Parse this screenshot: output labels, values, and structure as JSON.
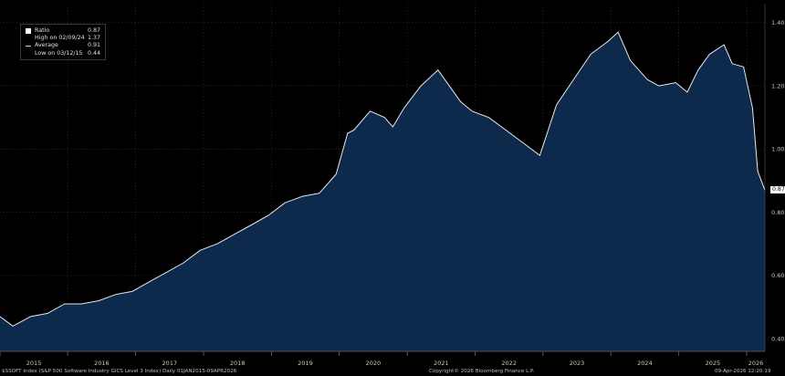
{
  "chart_data": {
    "type": "area",
    "title": "",
    "xlabel": "",
    "ylabel": "",
    "ylim": [
      0.36,
      1.46
    ],
    "y_ticks": [
      "0.40",
      "0.60",
      "0.80",
      "1.00",
      "1.20",
      "1.40"
    ],
    "x_ticks": [
      "2015",
      "2016",
      "2017",
      "2018",
      "2019",
      "2020",
      "2021",
      "2022",
      "2023",
      "2024",
      "2025",
      "2026"
    ],
    "x_range": [
      "2015-01-02",
      "2026-04-09"
    ],
    "grid": true,
    "legend_position": "top-left",
    "colors": {
      "fill": "#0d2a4d",
      "line": "#e8e8e8",
      "grid": "#2c2c2c",
      "background": "#000000"
    },
    "series": [
      {
        "name": "Ratio",
        "x": [
          "2015-01-02",
          "2015-03-12",
          "2015-06-15",
          "2015-09-15",
          "2015-12-15",
          "2016-03-15",
          "2016-06-15",
          "2016-09-15",
          "2016-12-15",
          "2017-03-15",
          "2017-06-15",
          "2017-09-15",
          "2017-12-15",
          "2018-03-15",
          "2018-06-15",
          "2018-09-15",
          "2018-12-15",
          "2019-03-15",
          "2019-06-15",
          "2019-09-15",
          "2019-12-15",
          "2020-02-15",
          "2020-03-20",
          "2020-06-15",
          "2020-09-01",
          "2020-10-15",
          "2020-12-15",
          "2021-03-15",
          "2021-06-15",
          "2021-10-15",
          "2021-12-15",
          "2022-03-15",
          "2022-06-15",
          "2022-09-15",
          "2022-12-15",
          "2023-03-15",
          "2023-06-15",
          "2023-09-15",
          "2023-12-15",
          "2024-02-09",
          "2024-04-15",
          "2024-07-15",
          "2024-09-15",
          "2024-12-15",
          "2025-02-15",
          "2025-04-15",
          "2025-06-15",
          "2025-09-01",
          "2025-10-15",
          "2025-12-15",
          "2026-02-01",
          "2026-03-01",
          "2026-04-09"
        ],
        "values": [
          0.47,
          0.44,
          0.47,
          0.48,
          0.51,
          0.51,
          0.52,
          0.54,
          0.55,
          0.58,
          0.61,
          0.64,
          0.68,
          0.7,
          0.73,
          0.76,
          0.79,
          0.83,
          0.85,
          0.86,
          0.92,
          1.05,
          1.06,
          1.12,
          1.1,
          1.07,
          1.13,
          1.2,
          1.25,
          1.15,
          1.12,
          1.1,
          1.06,
          1.02,
          0.98,
          1.14,
          1.22,
          1.3,
          1.34,
          1.37,
          1.28,
          1.22,
          1.2,
          1.21,
          1.18,
          1.25,
          1.3,
          1.33,
          1.27,
          1.26,
          1.13,
          0.93,
          0.87
        ]
      }
    ]
  },
  "legend": {
    "items": [
      {
        "label": "Ratio",
        "value": "0.87"
      },
      {
        "label": "High on 02/09/24",
        "value": "1.37"
      },
      {
        "label": "Average",
        "value": "0.91"
      },
      {
        "label": "Low on 03/12/15",
        "value": "0.44"
      }
    ]
  },
  "last_value_label": "0.87",
  "footer": {
    "left": "$SSOFT Index (S&P 500 Software Industry GICS Level 3 Index) Daily 01JAN2015-09APR2026",
    "center": "Copyright© 2026 Bloomberg Finance L.P.",
    "right": "09-Apr-2026 12:20:19"
  }
}
